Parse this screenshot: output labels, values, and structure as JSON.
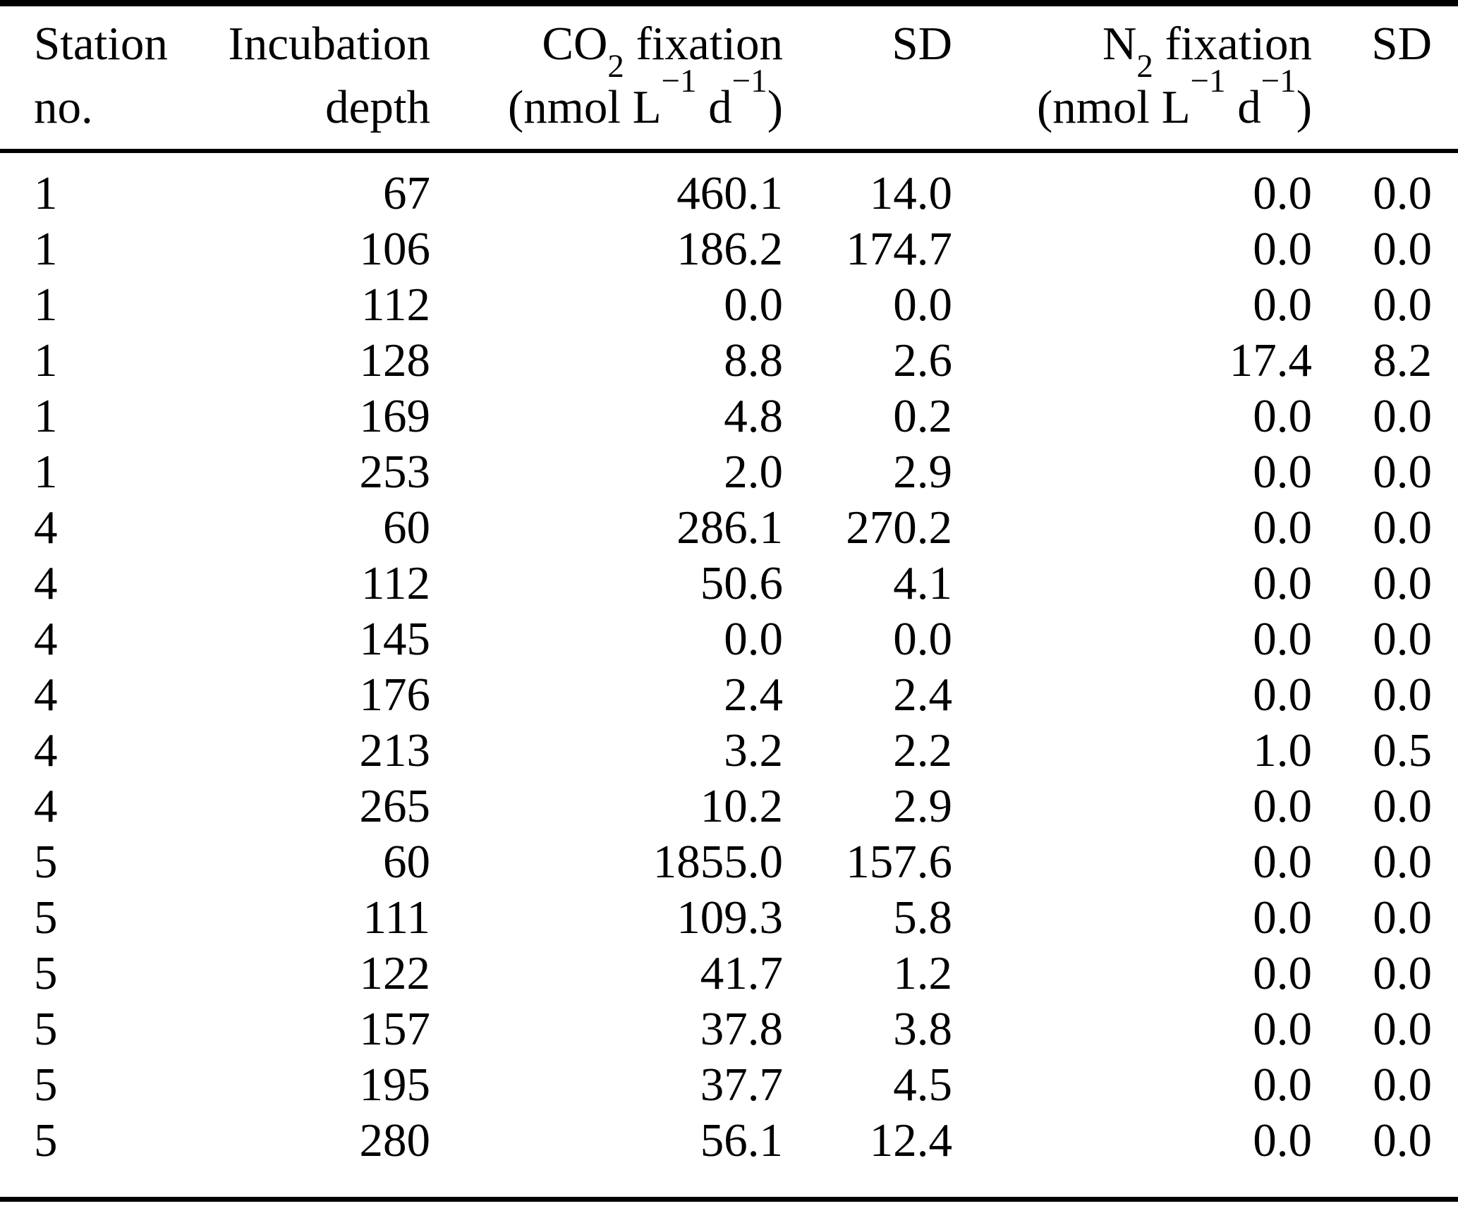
{
  "colors": {
    "background": "#ffffff",
    "text": "#000000",
    "rule": "#000000"
  },
  "table": {
    "header": {
      "station": {
        "line1": "Station",
        "line2": "no."
      },
      "depth": {
        "line1": "Incubation",
        "line2": "depth"
      },
      "co2": {
        "name_main": "CO",
        "name_sub": "2",
        "name_rest": " fixation",
        "unit_open": "(nmol L",
        "unit_sup1": "−1",
        "unit_mid": " d",
        "unit_sup2": "−1",
        "unit_close": ")"
      },
      "sd1": {
        "line1": "SD"
      },
      "n2": {
        "name_main": "N",
        "name_sub": "2",
        "name_rest": " fixation",
        "unit_open": "(nmol L",
        "unit_sup1": "−1",
        "unit_mid": " d",
        "unit_sup2": "−1",
        "unit_close": ")"
      },
      "sd2": {
        "line1": "SD"
      }
    },
    "rows": [
      {
        "station": "1",
        "depth": "67",
        "co2": "460.1",
        "co2_sd": "14.0",
        "n2": "0.0",
        "n2_sd": "0.0"
      },
      {
        "station": "1",
        "depth": "106",
        "co2": "186.2",
        "co2_sd": "174.7",
        "n2": "0.0",
        "n2_sd": "0.0"
      },
      {
        "station": "1",
        "depth": "112",
        "co2": "0.0",
        "co2_sd": "0.0",
        "n2": "0.0",
        "n2_sd": "0.0"
      },
      {
        "station": "1",
        "depth": "128",
        "co2": "8.8",
        "co2_sd": "2.6",
        "n2": "17.4",
        "n2_sd": "8.2"
      },
      {
        "station": "1",
        "depth": "169",
        "co2": "4.8",
        "co2_sd": "0.2",
        "n2": "0.0",
        "n2_sd": "0.0"
      },
      {
        "station": "1",
        "depth": "253",
        "co2": "2.0",
        "co2_sd": "2.9",
        "n2": "0.0",
        "n2_sd": "0.0"
      },
      {
        "station": "4",
        "depth": "60",
        "co2": "286.1",
        "co2_sd": "270.2",
        "n2": "0.0",
        "n2_sd": "0.0"
      },
      {
        "station": "4",
        "depth": "112",
        "co2": "50.6",
        "co2_sd": "4.1",
        "n2": "0.0",
        "n2_sd": "0.0"
      },
      {
        "station": "4",
        "depth": "145",
        "co2": "0.0",
        "co2_sd": "0.0",
        "n2": "0.0",
        "n2_sd": "0.0"
      },
      {
        "station": "4",
        "depth": "176",
        "co2": "2.4",
        "co2_sd": "2.4",
        "n2": "0.0",
        "n2_sd": "0.0"
      },
      {
        "station": "4",
        "depth": "213",
        "co2": "3.2",
        "co2_sd": "2.2",
        "n2": "1.0",
        "n2_sd": "0.5"
      },
      {
        "station": "4",
        "depth": "265",
        "co2": "10.2",
        "co2_sd": "2.9",
        "n2": "0.0",
        "n2_sd": "0.0"
      },
      {
        "station": "5",
        "depth": "60",
        "co2": "1855.0",
        "co2_sd": "157.6",
        "n2": "0.0",
        "n2_sd": "0.0"
      },
      {
        "station": "5",
        "depth": "111",
        "co2": "109.3",
        "co2_sd": "5.8",
        "n2": "0.0",
        "n2_sd": "0.0"
      },
      {
        "station": "5",
        "depth": "122",
        "co2": "41.7",
        "co2_sd": "1.2",
        "n2": "0.0",
        "n2_sd": "0.0"
      },
      {
        "station": "5",
        "depth": "157",
        "co2": "37.8",
        "co2_sd": "3.8",
        "n2": "0.0",
        "n2_sd": "0.0"
      },
      {
        "station": "5",
        "depth": "195",
        "co2": "37.7",
        "co2_sd": "4.5",
        "n2": "0.0",
        "n2_sd": "0.0"
      },
      {
        "station": "5",
        "depth": "280",
        "co2": "56.1",
        "co2_sd": "12.4",
        "n2": "0.0",
        "n2_sd": "0.0"
      }
    ]
  }
}
